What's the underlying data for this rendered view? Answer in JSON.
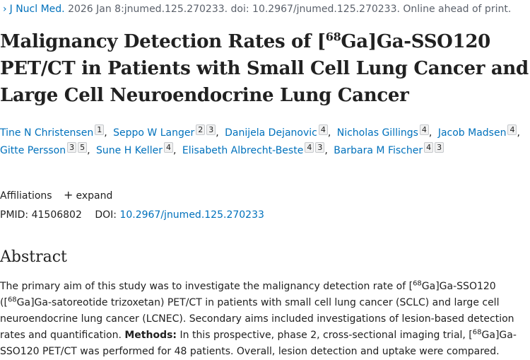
{
  "citation": {
    "journal": "J Nucl Med.",
    "details": "2026 Jan 8:jnumed.125.270233. doi: 10.2967/jnumed.125.270233. Online ahead of print."
  },
  "title": {
    "part1": "Malignancy Detection Rates of [",
    "sup": "68",
    "part2": "Ga]Ga-SSO120 PET/CT in Patients with Small Cell Lung Cancer and Large Cell Neuroendocrine Lung Cancer"
  },
  "authors": [
    {
      "name": "Tine N Christensen",
      "affs": [
        "1"
      ]
    },
    {
      "name": "Seppo W Langer",
      "affs": [
        "2",
        "3"
      ]
    },
    {
      "name": "Danijela Dejanovic",
      "affs": [
        "4"
      ]
    },
    {
      "name": "Nicholas Gillings",
      "affs": [
        "4"
      ]
    },
    {
      "name": "Jacob Madsen",
      "affs": [
        "4"
      ]
    },
    {
      "name": "Gitte Persson",
      "affs": [
        "3",
        "5"
      ]
    },
    {
      "name": "Sune H Keller",
      "affs": [
        "4"
      ]
    },
    {
      "name": "Elisabeth Albrecht-Beste",
      "affs": [
        "4",
        "3"
      ]
    },
    {
      "name": "Barbara M Fischer",
      "affs": [
        "4",
        "3"
      ]
    }
  ],
  "affiliations": {
    "label": "Affiliations",
    "expand_label": "expand",
    "expand_icon": "plus-icon"
  },
  "ids": {
    "pmid_label": "PMID:",
    "pmid": "41506802",
    "doi_label": "DOI:",
    "doi": "10.2967/jnumed.125.270233"
  },
  "abstract": {
    "heading": "Abstract",
    "t1": "The primary aim of this study was to investigate the malignancy detection rate of [",
    "sup1": "68",
    "t2": "Ga]Ga-SSO120 ([",
    "sup2": "68",
    "t3": "Ga]Ga-satoreotide trizoxetan) PET/CT in patients with small cell lung cancer (SCLC) and large cell neuroendocrine lung cancer (LCNEC). Secondary aims included investigations of lesion-based detection rates and quantification. ",
    "methods_label": "Methods:",
    "t4": " In this prospective, phase 2, cross-sectional imaging trial, [",
    "sup3": "68",
    "t5": "Ga]Ga-SSO120 PET/CT was performed for 48 patients. Overall, lesion detection and uptake were compared."
  },
  "colors": {
    "link": "#0071bc",
    "text": "#212121",
    "muted": "#5b616b"
  }
}
